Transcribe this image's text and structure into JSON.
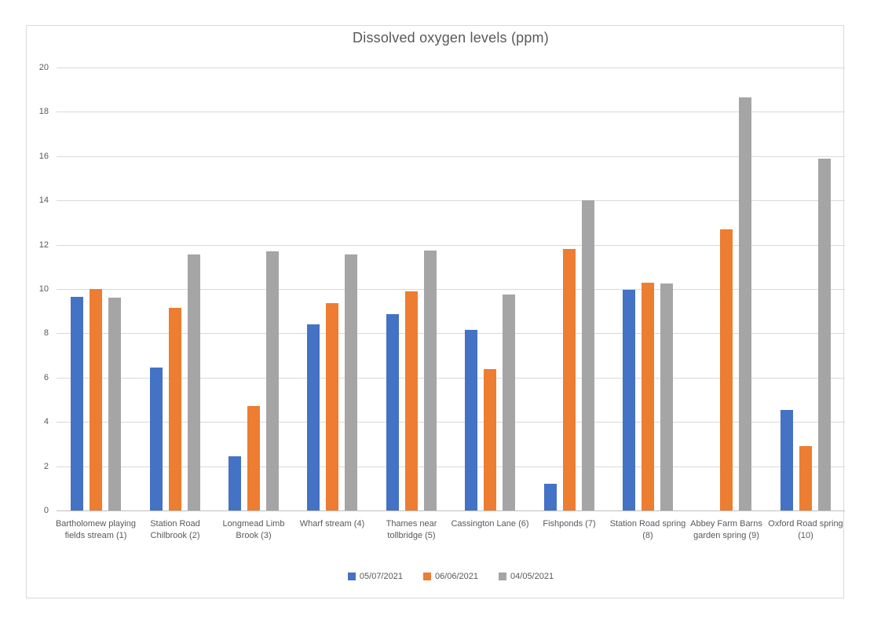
{
  "window": {
    "background": "#ffffff",
    "frame_border_color": "#d9d9d9"
  },
  "colors": {
    "title_text": "#595959",
    "axis_text": "#595959",
    "gridline": "#d9d9d9",
    "axis_line": "#bfbfbf",
    "series_blue": "#4472C4",
    "series_orange": "#ED7D31",
    "series_gray": "#A5A5A5"
  },
  "chart_data": {
    "type": "bar",
    "title": "Dissolved oxygen levels (ppm)",
    "xlabel": "",
    "ylabel": "",
    "ylim": [
      0,
      20
    ],
    "ytick_step": 2,
    "ytick_labels": [
      "0",
      "2",
      "4",
      "6",
      "8",
      "10",
      "12",
      "14",
      "16",
      "18",
      "20"
    ],
    "grid": true,
    "legend_position": "bottom",
    "categories": [
      "Bartholomew playing fields stream (1)",
      "Station Road Chilbrook (2)",
      "Longmead Limb Brook (3)",
      "Wharf stream (4)",
      "Thames near tollbridge (5)",
      "Cassington Lane (6)",
      "Fishponds (7)",
      "Station Road spring (8)",
      "Abbey Farm Barns garden spring (9)",
      "Oxford Road spring (10)"
    ],
    "series": [
      {
        "name": "05/07/2021",
        "color": "#4472C4",
        "values": [
          9.65,
          6.45,
          2.45,
          8.4,
          8.85,
          8.15,
          1.2,
          9.95,
          null,
          4.55
        ]
      },
      {
        "name": "06/06/2021",
        "color": "#ED7D31",
        "values": [
          10.0,
          9.15,
          4.7,
          9.35,
          9.9,
          6.4,
          11.8,
          10.3,
          12.7,
          2.9
        ]
      },
      {
        "name": "04/05/2021",
        "color": "#A5A5A5",
        "values": [
          9.6,
          11.55,
          11.7,
          11.55,
          11.75,
          9.75,
          14.0,
          10.25,
          18.65,
          15.9
        ]
      }
    ]
  }
}
